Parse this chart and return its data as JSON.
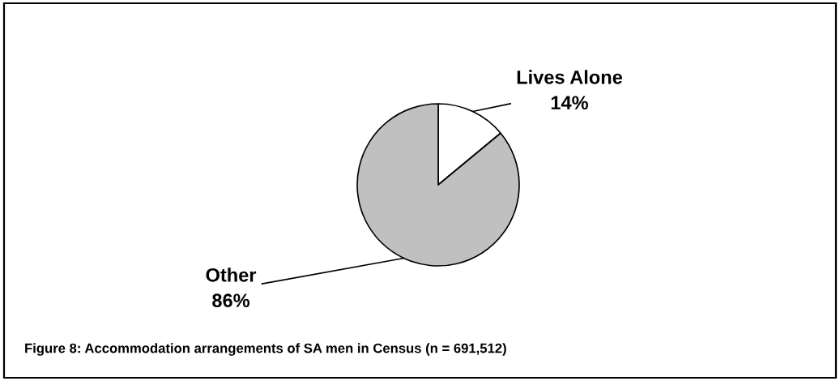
{
  "chart_data": {
    "type": "pie",
    "categories": [
      "Lives Alone",
      "Other"
    ],
    "values": [
      14,
      86
    ],
    "value_labels": [
      "14%",
      "86%"
    ],
    "colors": [
      "#ffffff",
      "#c0c0c0"
    ],
    "annotations": [
      "Figure 8: Accommodation arrangements of SA men in Census (n = 691,512)"
    ]
  }
}
